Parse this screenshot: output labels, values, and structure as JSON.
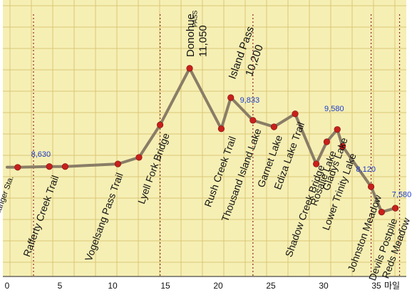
{
  "chart_data": {
    "type": "line",
    "x_unit_label": "마일",
    "xlim": [
      0,
      38.5
    ],
    "x_ticks": [
      "0",
      "5",
      "10",
      "15",
      "20",
      "25",
      "30",
      "35"
    ],
    "grid": true,
    "colors": {
      "background": "#f6efb4",
      "grid": "#d9c776",
      "line": "#8a7d66",
      "point": "#c8201c",
      "elevation_text": "#1e3cc8",
      "marker_line": "#8b2a26"
    },
    "points": [
      {
        "x": 0.0,
        "y": 8630
      },
      {
        "x": 1.0,
        "y": 8628
      },
      {
        "x": 4.0,
        "y": 8640
      },
      {
        "x": 5.5,
        "y": 8640
      },
      {
        "x": 10.5,
        "y": 8680
      },
      {
        "x": 12.5,
        "y": 8780
      },
      {
        "x": 14.5,
        "y": 9280
      },
      {
        "x": 17.3,
        "y": 10150
      },
      {
        "x": 20.3,
        "y": 9220
      },
      {
        "x": 21.2,
        "y": 9700
      },
      {
        "x": 23.3,
        "y": 9350
      },
      {
        "x": 25.3,
        "y": 9250
      },
      {
        "x": 27.3,
        "y": 9450
      },
      {
        "x": 29.3,
        "y": 8680
      },
      {
        "x": 30.3,
        "y": 9020
      },
      {
        "x": 31.3,
        "y": 9210
      },
      {
        "x": 31.8,
        "y": 8950
      },
      {
        "x": 34.5,
        "y": 8330
      },
      {
        "x": 35.5,
        "y": 7940
      },
      {
        "x": 36.8,
        "y": 8000
      }
    ],
    "marker_lines_x": [
      2.5,
      14.5,
      23.3,
      34.5,
      37.2
    ],
    "annotations": [
      {
        "text": "8,630",
        "x": 3.2,
        "y": 8790,
        "kind": "elevation"
      },
      {
        "text": "9,833",
        "x": 23.0,
        "y": 9620,
        "kind": "elevation"
      },
      {
        "text": "9,580",
        "x": 31.0,
        "y": 9490,
        "kind": "elevation"
      },
      {
        "text": "8,120",
        "x": 34.0,
        "y": 8560,
        "kind": "elevation"
      },
      {
        "text": "7,580",
        "x": 37.4,
        "y": 8170,
        "kind": "elevation"
      }
    ],
    "summit": {
      "name": "Donohue",
      "suffix": "PASS",
      "elevation": "11,050"
    },
    "pass": {
      "line1": "Island Pass",
      "line2": "10,200"
    },
    "places": [
      {
        "text": "Tuolumne Meadows Ranger Sta.",
        "x": 0.6,
        "y": 8480,
        "size": 11
      },
      {
        "text": "Rafferty Creek Trail",
        "x": 4.9,
        "y": 8480,
        "size": 14
      },
      {
        "text": "Vogelsang Pass Trail",
        "x": 11.0,
        "y": 8520,
        "size": 14
      },
      {
        "text": "Lyell Fork Bridge",
        "x": 15.4,
        "y": 9130,
        "size": 14
      },
      {
        "text": "Rush Creek Trail",
        "x": 21.7,
        "y": 9080,
        "size": 14
      },
      {
        "text": "Thousand Island Lake",
        "x": 24.1,
        "y": 9200,
        "size": 14
      },
      {
        "text": "Garnet Lake",
        "x": 26.1,
        "y": 9100,
        "size": 14
      },
      {
        "text": "Ediza Lake Trail",
        "x": 28.2,
        "y": 9300,
        "size": 14
      },
      {
        "text": "Shadow Creek Bridge",
        "x": 30.1,
        "y": 8640,
        "size": 14
      },
      {
        "text": "Rosalie Lake",
        "x": 31.2,
        "y": 8860,
        "size": 14
      },
      {
        "text": "Gladys Lake",
        "x": 32.3,
        "y": 9060,
        "size": 14
      },
      {
        "text": "Lower Trinity Lake",
        "x": 33.1,
        "y": 8820,
        "size": 14
      },
      {
        "text": "Johnston Meadow",
        "x": 35.5,
        "y": 8180,
        "size": 14
      },
      {
        "text": "Devils Postpile",
        "x": 37.0,
        "y": 7820,
        "size": 14
      },
      {
        "text": "Reds Meadow",
        "x": 38.2,
        "y": 7830,
        "size": 14
      }
    ]
  }
}
